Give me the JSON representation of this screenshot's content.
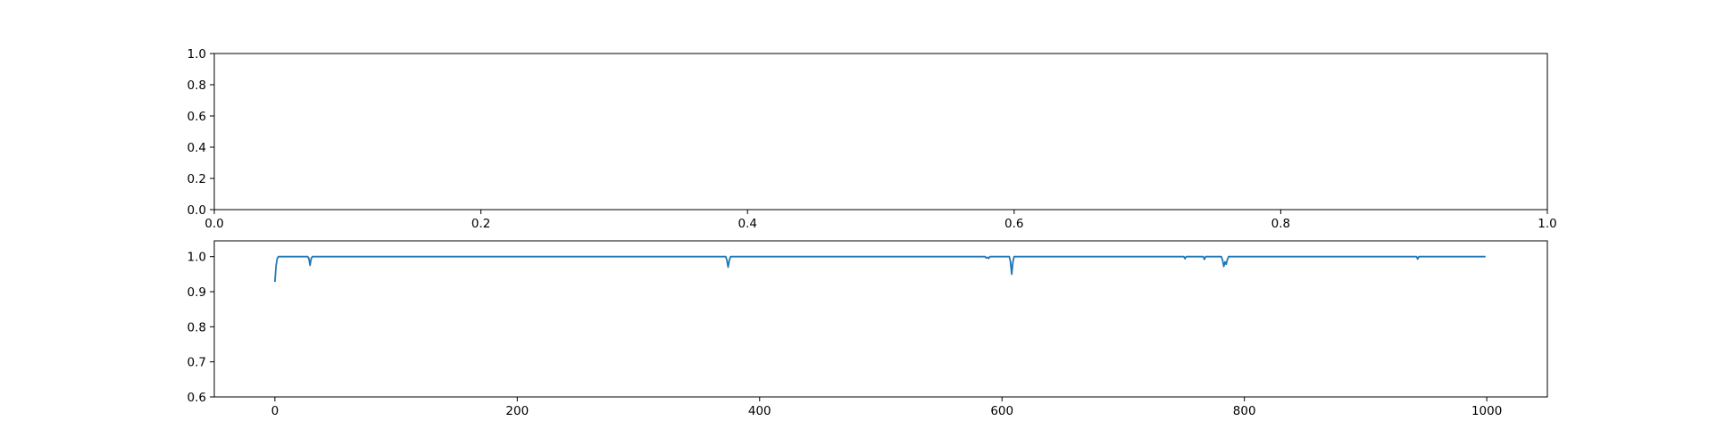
{
  "chart_data": [
    {
      "type": "line",
      "xlim": [
        0.0,
        1.0
      ],
      "ylim": [
        0.0,
        1.0
      ],
      "xticks": [
        "0.0",
        "0.2",
        "0.4",
        "0.6",
        "0.8",
        "1.0"
      ],
      "yticks": [
        "0.0",
        "0.2",
        "0.4",
        "0.6",
        "0.8",
        "1.0"
      ],
      "series": [],
      "grid": false
    },
    {
      "type": "line",
      "xlim": [
        -50,
        1050
      ],
      "ylim": [
        0.6,
        1.045
      ],
      "xticks": [
        "0",
        "200",
        "400",
        "600",
        "800",
        "1000"
      ],
      "yticks": [
        "0.6",
        "0.7",
        "0.8",
        "0.9",
        "1.0"
      ],
      "color": "#1f77b4",
      "grid": false,
      "baseline": 1.0,
      "n_points": 1000,
      "series": [
        {
          "start": [
            0,
            0.928
          ],
          "points": [
            [
              0,
              0.928
            ],
            [
              1,
              0.975
            ],
            [
              2,
              0.995
            ],
            [
              3,
              1.0
            ],
            [
              27,
              1.0
            ],
            [
              28,
              0.995
            ],
            [
              29,
              0.975
            ],
            [
              30,
              0.995
            ],
            [
              31,
              1.0
            ],
            [
              372,
              1.0
            ],
            [
              373,
              0.99
            ],
            [
              374,
              0.97
            ],
            [
              375,
              0.99
            ],
            [
              376,
              1.0
            ],
            [
              586,
              1.0
            ],
            [
              587,
              0.996
            ],
            [
              588,
              0.998
            ],
            [
              589,
              0.995
            ],
            [
              590,
              1.0
            ],
            [
              606,
              1.0
            ],
            [
              607,
              0.985
            ],
            [
              608,
              0.95
            ],
            [
              609,
              0.985
            ],
            [
              610,
              1.0
            ],
            [
              750,
              1.0
            ],
            [
              751,
              0.994
            ],
            [
              752,
              1.0
            ],
            [
              766,
              1.0
            ],
            [
              767,
              0.992
            ],
            [
              768,
              1.0
            ],
            [
              781,
              1.0
            ],
            [
              782,
              0.99
            ],
            [
              783,
              0.972
            ],
            [
              784,
              0.985
            ],
            [
              785,
              0.978
            ],
            [
              786,
              0.992
            ],
            [
              787,
              1.0
            ],
            [
              942,
              1.0
            ],
            [
              943,
              0.993
            ],
            [
              944,
              1.0
            ],
            [
              999,
              1.0
            ]
          ]
        }
      ]
    }
  ]
}
